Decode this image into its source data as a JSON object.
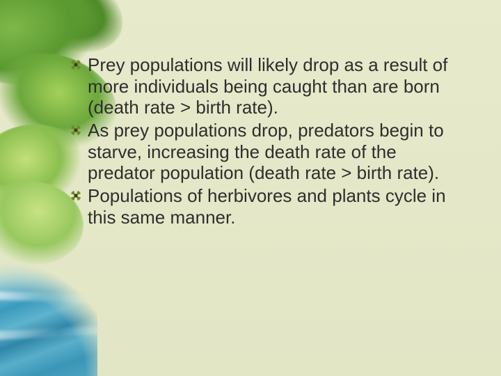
{
  "slide": {
    "background_color": "#e7eacb",
    "text_color": "#2e2e2e",
    "font_family": "Arial",
    "bullet_font_size_pt": 26,
    "bullet_icon": "four-petal-flower",
    "bullet_icon_colors": {
      "petals": "#6a8a2a",
      "center": "#4d331a"
    },
    "decorations": {
      "leaves": {
        "position": "upper-left",
        "colors": [
          "#7fb84a",
          "#5a9930",
          "#a3d15a",
          "#c3e07a"
        ]
      },
      "water": {
        "position": "lower-left",
        "colors": [
          "#3a9bbd",
          "#8fc8d8",
          "#2f86a8"
        ]
      }
    },
    "bullets": [
      "Prey populations will likely drop as a result of more individuals being caught than are born (death rate > birth rate).",
      "As prey populations drop, predators begin to starve, increasing the death rate of the predator population (death rate > birth rate).",
      "Populations of herbivores and plants cycle in this same manner."
    ]
  }
}
